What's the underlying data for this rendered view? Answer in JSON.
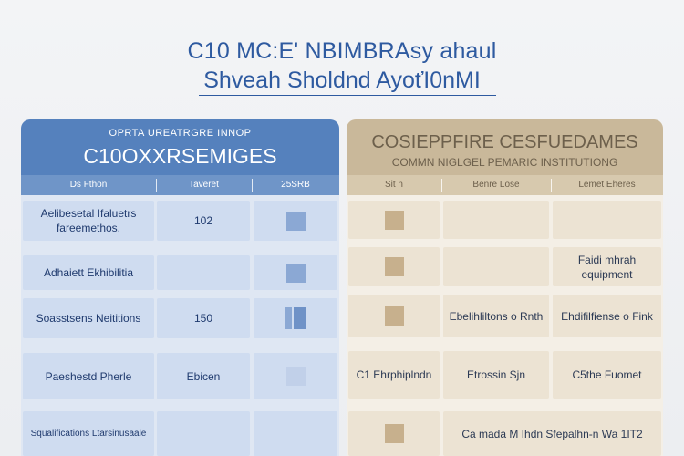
{
  "title": {
    "line1": "C10 MC:E' NBIMBRAsy ahaul",
    "line2": "Shveah Sholdnd AyoťI0nMI"
  },
  "left_panel": {
    "subtitle": "OPRTA UREATRGRE INNOP",
    "title": "C10OXXRSEMIGES",
    "columns": [
      "Ds Fthon",
      "Taveret",
      "25SRB"
    ],
    "rows": [
      {
        "label": "Aelibesetal Ifaluetrs fareemethos.",
        "value": "102",
        "indicator": "square"
      },
      {
        "label": "Adhaiett Ekhibilitia",
        "value": "",
        "indicator": "square"
      },
      {
        "label": "Soasstsens Neititions",
        "value": "150",
        "indicator": "bar"
      },
      {
        "label": "Paeshestd Pherle",
        "value": "Ebicen",
        "indicator": "faint"
      },
      {
        "label": "Squalifications Ltarsinusaale",
        "value": "",
        "indicator": ""
      }
    ]
  },
  "right_panel": {
    "title": "COSIEPPFIRE CESFUEDAMES",
    "subtitle": "COMMN NIGLGEL PEMARIC INSTITUTIONG",
    "columns": [
      "Sit n",
      "Benre Lose",
      "Lemet Eheres"
    ],
    "rows": [
      {
        "col1": "",
        "col1_square": true,
        "col2": "",
        "col3": ""
      },
      {
        "col1": "",
        "col1_square": true,
        "col2": "",
        "col3": "Faidi mhrah equipment"
      },
      {
        "col1": "",
        "col1_square": true,
        "col2": "Ebelihliltons o Rnth",
        "col3": "Ehdifilfiense o Fink"
      },
      {
        "col1": "C1 Ehrphiplndn",
        "col1_square": false,
        "col2": "Etrossin Sjn",
        "col3": "C5the Fuomet"
      },
      {
        "col1": "",
        "col1_square": true,
        "col2": "Ca mada M Ihdn Sfepalhn-n Wa 1IT2",
        "col3": ""
      }
    ]
  }
}
